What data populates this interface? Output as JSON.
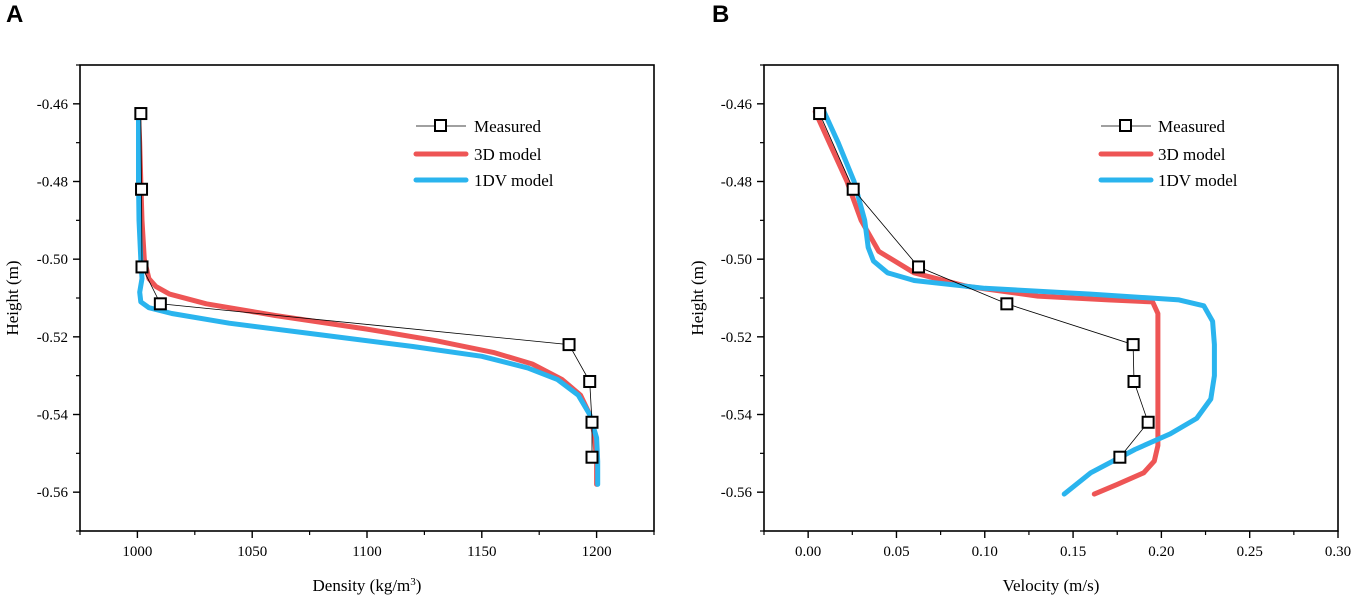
{
  "colors": {
    "measured": "#000000",
    "model3d": "#ee5555",
    "model1dv": "#2ab4ee"
  },
  "chart_data": [
    {
      "type": "line",
      "panel_label": "A",
      "xlabel": "Density (kg/m3)",
      "xlabel_main": "Density (kg/m",
      "xlabel_sup": "3",
      "xlabel_tail": ")",
      "ylabel": "Height (m)",
      "xlim": [
        975,
        1225
      ],
      "ylim": [
        -0.57,
        -0.45
      ],
      "xticks": [
        1000,
        1050,
        1100,
        1150,
        1200
      ],
      "xtick_labels": [
        "1000",
        "1050",
        "1100",
        "1150",
        "1200"
      ],
      "xminor": [
        975,
        1025,
        1075,
        1125,
        1175,
        1225
      ],
      "yticks": [
        -0.46,
        -0.48,
        -0.5,
        -0.52,
        -0.54,
        -0.56
      ],
      "ytick_labels": [
        "-0.46",
        "-0.48",
        "-0.50",
        "-0.52",
        "-0.54",
        "-0.56"
      ],
      "yminor": [
        -0.45,
        -0.47,
        -0.49,
        -0.51,
        -0.53,
        -0.55,
        -0.57
      ],
      "legend": [
        "Measured",
        "3D model",
        "1DV model"
      ],
      "series": [
        {
          "name": "Measured",
          "style": "marker",
          "x": [
            1001.5,
            1001.8,
            1002,
            1010,
            1188,
            1197,
            1198,
            1198
          ],
          "y": [
            -0.4625,
            -0.482,
            -0.502,
            -0.5115,
            -0.522,
            -0.5315,
            -0.542,
            -0.551
          ]
        },
        {
          "name": "3D model",
          "style": "line",
          "x": [
            1000.5,
            1001,
            1001.5,
            1002,
            1003,
            1005,
            1008,
            1014,
            1030,
            1060,
            1100,
            1130,
            1155,
            1172,
            1185,
            1193,
            1197,
            1199,
            1200,
            1200
          ],
          "y": [
            -0.4625,
            -0.47,
            -0.48,
            -0.49,
            -0.5,
            -0.505,
            -0.507,
            -0.509,
            -0.5115,
            -0.5145,
            -0.518,
            -0.521,
            -0.524,
            -0.527,
            -0.531,
            -0.535,
            -0.54,
            -0.545,
            -0.552,
            -0.558
          ]
        },
        {
          "name": "1DV model",
          "style": "line",
          "x": [
            1000.5,
            1000.5,
            1000.5,
            1000.7,
            1001.5,
            1002,
            1001,
            1001.5,
            1005,
            1015,
            1040,
            1080,
            1120,
            1150,
            1170,
            1183,
            1192,
            1197,
            1200,
            1200.5,
            1200.5
          ],
          "y": [
            -0.4625,
            -0.47,
            -0.48,
            -0.49,
            -0.5,
            -0.505,
            -0.5085,
            -0.511,
            -0.5125,
            -0.514,
            -0.5165,
            -0.5195,
            -0.5225,
            -0.525,
            -0.528,
            -0.531,
            -0.535,
            -0.54,
            -0.546,
            -0.552,
            -0.558
          ]
        }
      ]
    },
    {
      "type": "line",
      "panel_label": "B",
      "xlabel": "Velocity (m/s)",
      "ylabel": "Height (m)",
      "xlim": [
        -0.025,
        0.3
      ],
      "ylim": [
        -0.57,
        -0.45
      ],
      "xticks": [
        0.0,
        0.05,
        0.1,
        0.15,
        0.2,
        0.25,
        0.3
      ],
      "xtick_labels": [
        "0.00",
        "0.05",
        "0.10",
        "0.15",
        "0.20",
        "0.25",
        "0.30"
      ],
      "xminor": [
        -0.025,
        0.025,
        0.075,
        0.125,
        0.175,
        0.225,
        0.275
      ],
      "yticks": [
        -0.46,
        -0.48,
        -0.5,
        -0.52,
        -0.54,
        -0.56
      ],
      "ytick_labels": [
        "-0.46",
        "-0.48",
        "-0.50",
        "-0.52",
        "-0.54",
        "-0.56"
      ],
      "yminor": [
        -0.45,
        -0.47,
        -0.49,
        -0.51,
        -0.53,
        -0.55,
        -0.57
      ],
      "legend": [
        "Measured",
        "3D model",
        "1DV model"
      ],
      "series": [
        {
          "name": "Measured",
          "style": "marker",
          "x": [
            0.0065,
            0.0255,
            0.0625,
            0.1125,
            0.184,
            0.1845,
            0.1925,
            0.1765
          ],
          "y": [
            -0.4625,
            -0.482,
            -0.502,
            -0.5115,
            -0.522,
            -0.5315,
            -0.542,
            -0.551
          ]
        },
        {
          "name": "3D model",
          "style": "line",
          "x": [
            0.004,
            0.012,
            0.022,
            0.03,
            0.04,
            0.06,
            0.09,
            0.13,
            0.17,
            0.195,
            0.198,
            0.198,
            0.198,
            0.198,
            0.198,
            0.196,
            0.19,
            0.175,
            0.162
          ],
          "y": [
            -0.462,
            -0.47,
            -0.48,
            -0.49,
            -0.498,
            -0.5035,
            -0.507,
            -0.5095,
            -0.5105,
            -0.511,
            -0.514,
            -0.52,
            -0.53,
            -0.54,
            -0.548,
            -0.552,
            -0.555,
            -0.558,
            -0.5605
          ]
        },
        {
          "name": "1DV model",
          "style": "line",
          "x": [
            0.009,
            0.017,
            0.026,
            0.032,
            0.034,
            0.037,
            0.045,
            0.06,
            0.1,
            0.16,
            0.21,
            0.224,
            0.229,
            0.23,
            0.23,
            0.228,
            0.22,
            0.205,
            0.185,
            0.16,
            0.145
          ],
          "y": [
            -0.462,
            -0.47,
            -0.48,
            -0.49,
            -0.497,
            -0.5005,
            -0.5035,
            -0.5055,
            -0.5075,
            -0.509,
            -0.5105,
            -0.512,
            -0.516,
            -0.522,
            -0.53,
            -0.536,
            -0.541,
            -0.545,
            -0.549,
            -0.555,
            -0.5605
          ]
        }
      ]
    }
  ]
}
